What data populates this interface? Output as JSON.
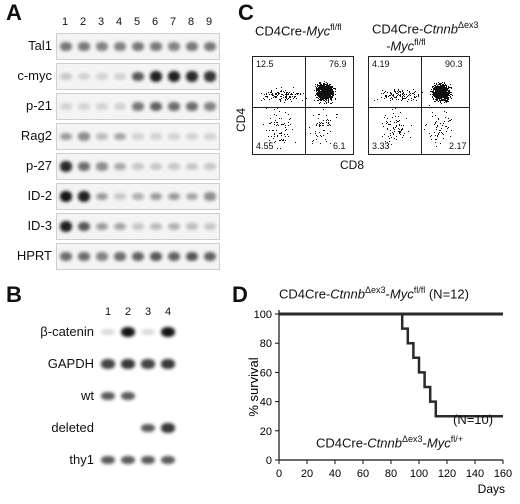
{
  "panel_a": {
    "letter": "A",
    "lanes": [
      "1",
      "2",
      "3",
      "4",
      "5",
      "6",
      "7",
      "8",
      "9"
    ],
    "rows": [
      {
        "label": "Tal1",
        "intensity": [
          0.45,
          0.45,
          0.4,
          0.4,
          0.45,
          0.45,
          0.4,
          0.45,
          0.45
        ]
      },
      {
        "label": "c-myc",
        "intensity": [
          0.1,
          0.05,
          0.05,
          0.05,
          0.6,
          0.85,
          0.85,
          0.8,
          0.75
        ]
      },
      {
        "label": "p-21",
        "intensity": [
          0.05,
          0.05,
          0.05,
          0.05,
          0.45,
          0.55,
          0.5,
          0.5,
          0.4
        ]
      },
      {
        "label": "Rag2",
        "intensity": [
          0.3,
          0.35,
          0.15,
          0.25,
          0.05,
          0.05,
          0.05,
          0.05,
          0.05
        ]
      },
      {
        "label": "p-27",
        "intensity": [
          0.8,
          0.5,
          0.35,
          0.25,
          0.1,
          0.1,
          0.1,
          0.1,
          0.1
        ]
      },
      {
        "label": "ID-2",
        "intensity": [
          0.9,
          0.85,
          0.3,
          0.1,
          0.2,
          0.3,
          0.3,
          0.25,
          0.35
        ]
      },
      {
        "label": "ID-3",
        "intensity": [
          0.85,
          0.6,
          0.3,
          0.25,
          0.1,
          0.15,
          0.2,
          0.15,
          0.1
        ]
      },
      {
        "label": "HPRT",
        "intensity": [
          0.5,
          0.5,
          0.4,
          0.5,
          0.55,
          0.6,
          0.55,
          0.6,
          0.55
        ]
      }
    ]
  },
  "panel_b": {
    "letter": "B",
    "lanes": [
      "1",
      "2",
      "3",
      "4"
    ],
    "rows": [
      {
        "label": "β-catenin",
        "intensity": [
          0.05,
          0.95,
          0.05,
          0.95
        ]
      },
      {
        "label": "GAPDH",
        "intensity": [
          0.7,
          0.75,
          0.7,
          0.75
        ]
      },
      {
        "label": "wt",
        "intensity": [
          0.6,
          0.6,
          0.0,
          0.0
        ]
      },
      {
        "label": "deleted",
        "intensity": [
          0.0,
          0.0,
          0.6,
          0.75
        ]
      },
      {
        "label": "thy1",
        "intensity": [
          0.6,
          0.6,
          0.6,
          0.6
        ]
      }
    ]
  },
  "panel_c": {
    "letter": "C",
    "ylabel": "CD4",
    "xlabel": "CD8",
    "plots": [
      {
        "genotype_prefix": "CD4Cre-",
        "genotype_gene": "Myc",
        "genotype_sup": "fl/fl",
        "genotype_line2": "",
        "quadrants": {
          "ul": "12.5",
          "ur": "76.9",
          "ll": "4.55",
          "lr": "6.1"
        }
      },
      {
        "genotype_prefix": "CD4Cre-",
        "genotype_gene": "Ctnnb",
        "genotype_sup": "Δex3",
        "genotype_line2": "-Myc",
        "genotype_line2_sup": "fl/fl",
        "quadrants": {
          "ul": "4.19",
          "ur": "90.3",
          "ll": "3.33",
          "lr": "2.17"
        }
      }
    ]
  },
  "panel_d": {
    "letter": "D",
    "series_labels": {
      "top_prefix": "CD4Cre-",
      "top_gene": "Ctnnb",
      "top_sup": "Δex3",
      "top_mid": "-",
      "top_gene2": "Myc",
      "top_sup2": "fl/fl",
      "top_n": " (N=12)",
      "bot_n": "(N=10)",
      "bot_prefix": "CD4Cre-",
      "bot_gene": "Ctnnb",
      "bot_sup": "Δex3",
      "bot_mid": "-",
      "bot_gene2": "Myc",
      "bot_sup2": "fl/+"
    }
  },
  "chart_data": {
    "type": "line",
    "xlabel": "Days",
    "ylabel": "% survival",
    "xlim": [
      0,
      160
    ],
    "ylim": [
      0,
      100
    ],
    "xticks": [
      "0",
      "20",
      "40",
      "60",
      "80",
      "100",
      "120",
      "140",
      "160"
    ],
    "yticks": [
      "0",
      "20",
      "40",
      "60",
      "80",
      "100"
    ],
    "series": [
      {
        "name": "CD4Cre-CtnnbΔex3-Mycfl/fl (N=12)",
        "x": [
          0,
          160
        ],
        "y": [
          100,
          100
        ]
      },
      {
        "name": "CD4Cre-CtnnbΔex3-Mycfl/+ (N=10)",
        "x": [
          0,
          88,
          88,
          92,
          92,
          96,
          96,
          100,
          100,
          104,
          104,
          108,
          108,
          112,
          112,
          116,
          116,
          160
        ],
        "y": [
          100,
          100,
          90,
          90,
          80,
          80,
          70,
          70,
          60,
          60,
          50,
          50,
          40,
          40,
          30,
          30,
          30,
          30
        ]
      }
    ]
  },
  "colors": {
    "band": "#141414",
    "line": "#2a2a2a"
  }
}
